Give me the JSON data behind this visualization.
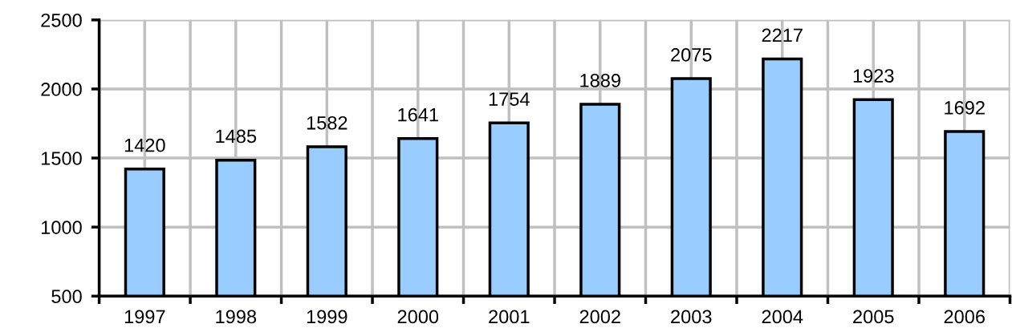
{
  "chart_data": {
    "type": "bar",
    "categories": [
      "1997",
      "1998",
      "1999",
      "2000",
      "2001",
      "2002",
      "2003",
      "2004",
      "2005",
      "2006"
    ],
    "values": [
      1420,
      1485,
      1582,
      1641,
      1754,
      1889,
      2075,
      2217,
      1923,
      1692
    ],
    "color": "#99ccff",
    "ylim": [
      500,
      2500
    ],
    "yticks": [
      500,
      1000,
      1500,
      2000,
      2500
    ],
    "grid": true,
    "data_labels": true
  }
}
